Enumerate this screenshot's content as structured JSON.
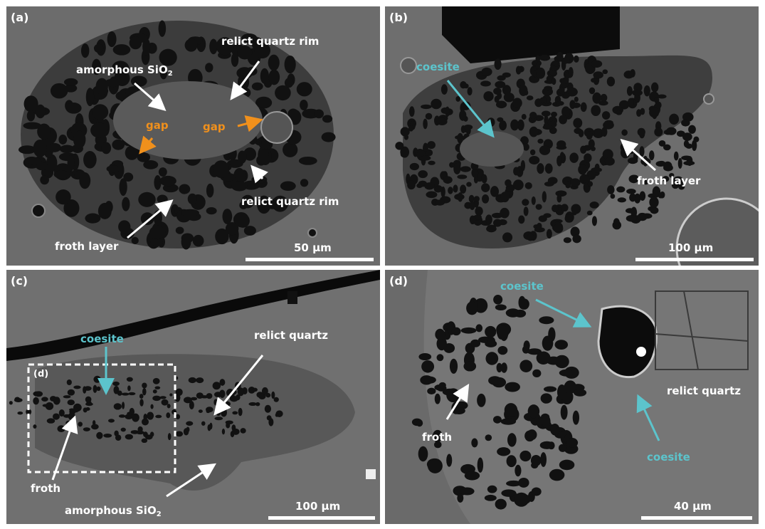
{
  "panels": {
    "a": {
      "label": "(a)",
      "texts": {
        "relict_rim_top": "relict quartz rim",
        "amorphous_main": "amorphous SiO",
        "amorphous_sub": "2",
        "gap_left": "gap",
        "gap_right": "gap",
        "relict_rim_bottom": "relict quartz rim",
        "froth_layer": "froth layer"
      },
      "scale": "50 µm"
    },
    "b": {
      "label": "(b)",
      "texts": {
        "coesite": "coesite",
        "froth_layer": "froth layer"
      },
      "scale": "100 µm"
    },
    "c": {
      "label": "(c)",
      "texts": {
        "coesite": "coesite",
        "relict_quartz": "relict quartz",
        "inset_label": "(d)",
        "froth": "froth",
        "amorphous_main": "amorphous SiO",
        "amorphous_sub": "2"
      },
      "scale": "100 µm"
    },
    "d": {
      "label": "(d)",
      "texts": {
        "coesite_top": "coesite",
        "relict_quartz": "relict quartz",
        "froth": "froth",
        "coesite_bottom": "coesite"
      },
      "scale": "40 µm"
    }
  },
  "colors": {
    "label_white": "#ffffff",
    "coesite_cyan": "#5cc4cc",
    "gap_orange": "#f0901c",
    "background_gray": "#6e6e6e"
  }
}
